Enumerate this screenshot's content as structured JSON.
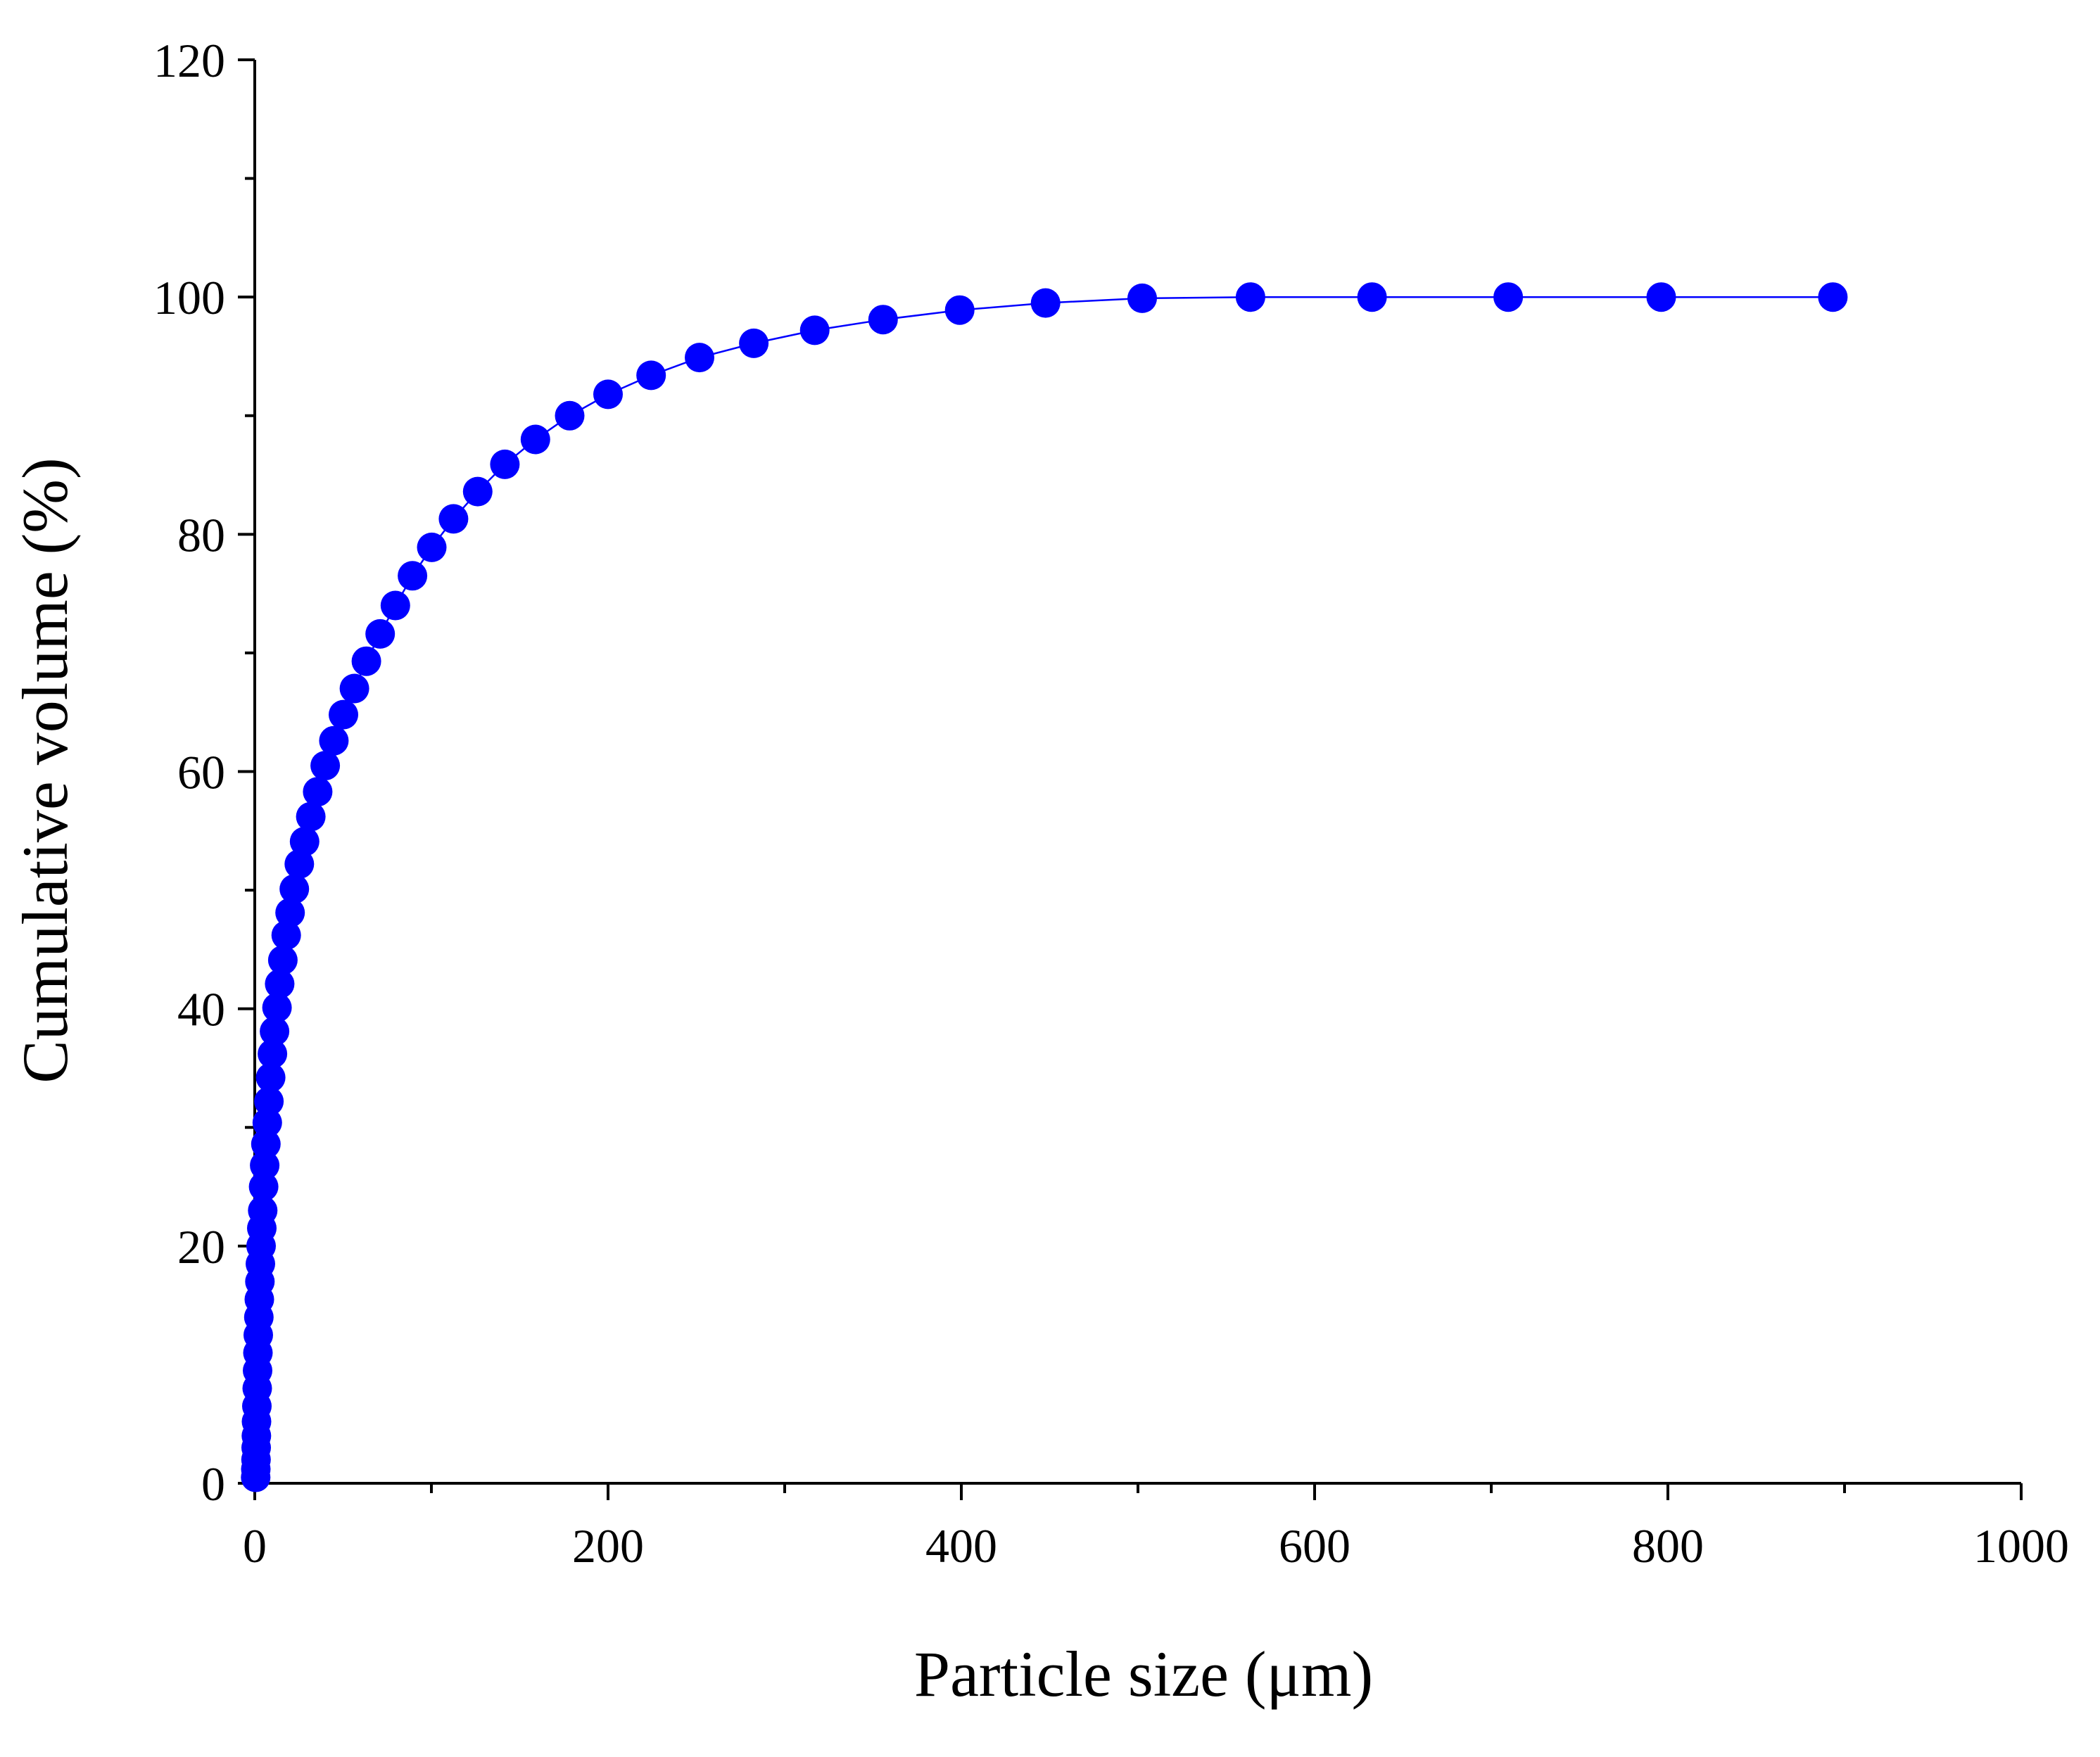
{
  "chart_data": {
    "type": "scatter",
    "title": "",
    "xlabel": "Particle size (μm)",
    "ylabel": "Cumulative volume (%)",
    "xlim": [
      0,
      1000
    ],
    "ylim": [
      0,
      120
    ],
    "x_ticks": [
      0,
      200,
      400,
      600,
      800,
      1000
    ],
    "x_tick_labels": [
      "0",
      "200",
      "400",
      "600",
      "800",
      "1000"
    ],
    "y_ticks": [
      0,
      20,
      40,
      60,
      80,
      100,
      120
    ],
    "y_tick_labels": [
      "0",
      "20",
      "40",
      "60",
      "80",
      "100",
      "120"
    ],
    "grid": false,
    "legend": "none",
    "series": [
      {
        "name": "Cumulative volume",
        "color": "#0000ff",
        "marker": "circle",
        "line": true,
        "x": [
          0.5,
          0.6,
          0.7,
          0.8,
          0.9,
          1.0,
          1.2,
          1.4,
          1.6,
          1.8,
          2.0,
          2.3,
          2.6,
          2.9,
          3.2,
          3.6,
          4.0,
          4.5,
          5.0,
          5.6,
          6.3,
          7.1,
          8.0,
          9.0,
          10.0,
          11.2,
          12.6,
          14.1,
          15.9,
          17.8,
          20.0,
          22.4,
          25.2,
          28.2,
          31.7,
          35.6,
          39.9,
          44.8,
          50.2,
          56.4,
          63.2,
          71.0,
          79.6,
          89.3,
          100.2,
          112.5,
          126.2,
          141.6,
          158.9,
          178.3,
          200.0,
          224.4,
          251.8,
          282.5,
          317.0,
          355.7,
          399.1,
          447.7,
          502.4,
          563.7,
          632.5,
          709.6,
          796.2,
          893.4
        ],
        "y": [
          0.5,
          1.2,
          2.0,
          3.0,
          4.0,
          5.2,
          6.5,
          8.0,
          9.5,
          11.0,
          12.5,
          14.0,
          15.5,
          17.0,
          18.5,
          20.0,
          21.5,
          23.0,
          25.0,
          26.8,
          28.6,
          30.4,
          32.2,
          34.2,
          36.2,
          38.1,
          40.1,
          42.1,
          44.1,
          46.2,
          48.1,
          50.1,
          52.2,
          54.1,
          56.2,
          58.3,
          60.5,
          62.6,
          64.8,
          67.0,
          69.3,
          71.6,
          74.0,
          76.5,
          78.9,
          81.3,
          83.6,
          85.9,
          88.0,
          90.0,
          91.8,
          93.4,
          94.9,
          96.1,
          97.2,
          98.1,
          98.9,
          99.5,
          99.9,
          100.0,
          100.0,
          100.0,
          100.0,
          100.0
        ]
      }
    ]
  }
}
